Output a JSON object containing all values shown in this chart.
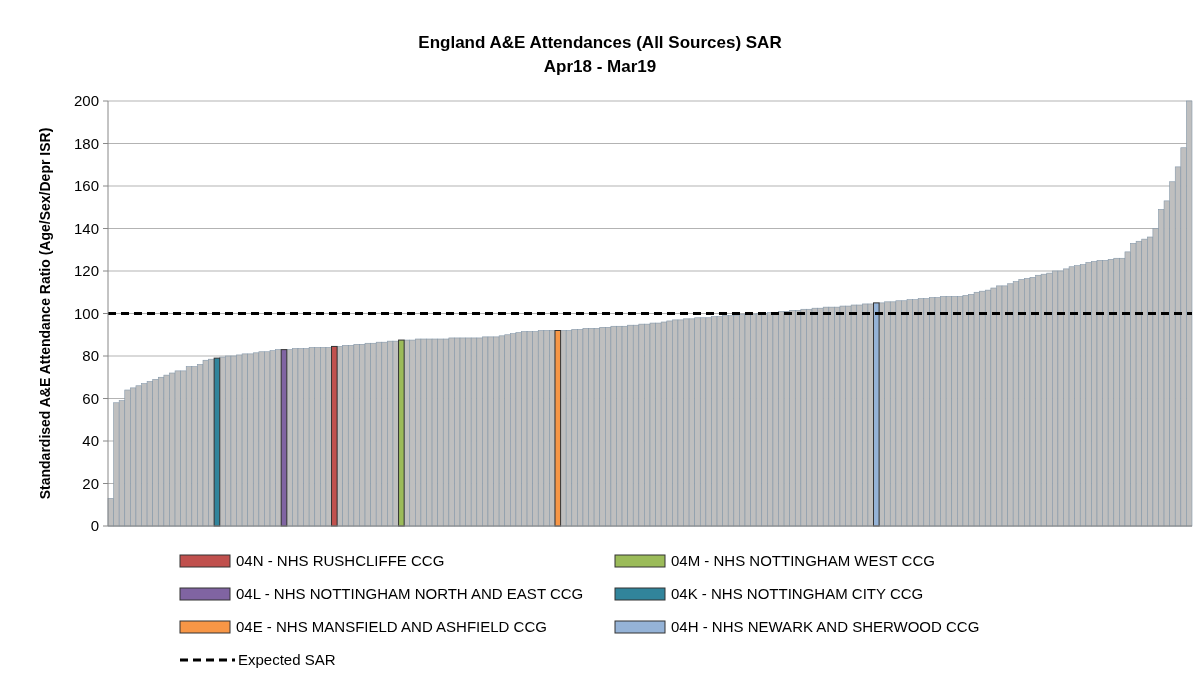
{
  "chart_data": {
    "type": "bar",
    "title": "England A&E Attendances (All Sources) SAR",
    "subtitle": "Apr18 - Mar19",
    "ylabel": "Standardised A&E Attendance Ratio (Age/Sex/Depr ISR)",
    "categories": [
      null,
      null,
      null,
      null,
      null,
      null,
      null,
      null,
      null,
      null,
      null,
      null,
      null,
      null,
      null,
      null,
      null,
      null,
      null,
      null,
      null,
      null,
      null,
      null,
      null,
      null,
      null,
      null,
      null,
      null,
      null,
      null,
      null,
      null,
      null,
      null,
      null,
      null,
      null,
      null,
      null,
      null,
      null,
      null,
      null,
      null,
      null,
      null,
      null,
      null,
      null,
      null,
      null,
      null,
      null,
      null,
      null,
      null,
      null,
      null,
      null,
      null,
      null,
      null,
      null,
      null,
      null,
      null,
      null,
      null,
      null,
      null,
      null,
      null,
      null,
      null,
      null,
      null,
      null,
      null,
      null,
      null,
      null,
      null,
      null,
      null,
      null,
      null,
      null,
      null,
      null,
      null,
      null,
      null,
      null,
      null,
      null,
      null,
      null,
      null,
      null,
      null,
      null,
      null,
      null,
      null,
      null,
      null,
      null,
      null,
      null,
      null,
      null,
      null,
      null,
      null,
      null,
      null,
      null,
      null,
      null,
      null,
      null,
      null,
      null,
      null,
      null,
      null,
      null,
      null,
      null,
      null,
      null,
      null,
      null,
      null,
      null,
      null,
      null,
      null,
      null,
      null,
      null,
      null,
      null,
      null,
      null,
      null,
      null,
      null,
      null,
      null,
      null,
      null,
      null,
      null,
      null,
      null,
      null,
      null,
      null,
      null,
      null,
      null,
      null,
      null,
      null,
      null,
      null,
      null,
      null,
      null,
      null,
      null,
      null,
      null,
      null,
      null,
      null,
      null,
      null,
      null,
      null,
      null,
      null,
      null,
      null,
      null,
      null,
      null,
      null,
      null,
      null,
      null
    ],
    "series": [
      {
        "color": "#bfbfbf",
        "values": [
          13,
          58,
          59,
          64,
          65,
          66,
          67,
          68,
          69,
          70,
          71,
          72,
          73,
          73,
          75,
          75,
          76,
          78,
          78.5,
          null,
          79.5,
          80,
          80,
          80.5,
          81,
          81,
          81.5,
          82,
          82,
          82.5,
          83,
          null,
          83,
          83.5,
          83.5,
          83.5,
          84,
          84,
          84,
          84,
          null,
          84.5,
          85,
          85,
          85.5,
          85.5,
          86,
          86,
          86.5,
          86.5,
          87,
          87,
          null,
          87.5,
          87.5,
          88,
          88,
          88,
          88,
          88,
          88,
          88.5,
          88.5,
          88.5,
          88.5,
          88.5,
          88.5,
          89,
          89,
          89,
          89.5,
          90,
          90.5,
          91,
          91.5,
          91.5,
          91.5,
          92,
          92,
          92,
          null,
          92,
          92,
          92.5,
          92.5,
          93,
          93,
          93,
          93.5,
          93.5,
          94,
          94,
          94,
          94.5,
          94.5,
          95,
          95,
          95.5,
          95.5,
          96,
          96.5,
          97,
          97,
          97.5,
          97.5,
          98,
          98,
          98,
          98.5,
          98.5,
          99,
          99,
          99,
          99.5,
          99.5,
          99.5,
          100,
          100,
          100.5,
          100.5,
          101,
          101,
          101.5,
          101.5,
          102,
          102,
          102.5,
          102.5,
          103,
          103,
          103,
          103.5,
          103.5,
          104,
          104,
          104.5,
          104.5,
          null,
          105,
          105.5,
          105.5,
          106,
          106,
          106.5,
          106.5,
          107,
          107,
          107.5,
          107.5,
          108,
          108,
          108,
          108,
          108.5,
          109,
          110,
          110.5,
          111,
          112,
          113,
          113,
          114,
          115,
          116,
          116.5,
          117,
          118,
          118.5,
          119,
          120,
          120,
          121,
          122,
          122.5,
          123,
          124,
          124.5,
          125,
          125,
          125.5,
          126,
          126,
          129,
          133,
          134,
          135,
          136,
          140,
          149,
          153,
          162,
          169,
          178,
          200
        ]
      },
      {
        "name": "04N - NHS RUSHCLIFFE CCG",
        "color": "#c0504d",
        "values": [
          null,
          null,
          null,
          null,
          null,
          null,
          null,
          null,
          null,
          null,
          null,
          null,
          null,
          null,
          null,
          null,
          null,
          null,
          null,
          null,
          null,
          null,
          null,
          null,
          null,
          null,
          null,
          null,
          null,
          null,
          null,
          null,
          null,
          null,
          null,
          null,
          null,
          null,
          null,
          null,
          84.5,
          null,
          null,
          null,
          null,
          null,
          null,
          null,
          null,
          null,
          null,
          null,
          null,
          null,
          null,
          null,
          null,
          null,
          null,
          null,
          null,
          null,
          null,
          null,
          null,
          null,
          null,
          null,
          null,
          null,
          null,
          null,
          null,
          null,
          null,
          null,
          null,
          null,
          null,
          null,
          null,
          null,
          null,
          null,
          null,
          null,
          null,
          null,
          null,
          null,
          null,
          null,
          null,
          null,
          null,
          null,
          null,
          null,
          null,
          null,
          null,
          null,
          null,
          null,
          null,
          null,
          null,
          null,
          null,
          null,
          null,
          null,
          null,
          null,
          null,
          null,
          null,
          null,
          null,
          null,
          null,
          null,
          null,
          null,
          null,
          null,
          null,
          null,
          null,
          null,
          null,
          null,
          null,
          null,
          null,
          null,
          null,
          null,
          null,
          null,
          null,
          null,
          null,
          null,
          null,
          null,
          null,
          null,
          null,
          null,
          null,
          null,
          null,
          null,
          null,
          null,
          null,
          null,
          null,
          null,
          null,
          null,
          null,
          null,
          null,
          null,
          null,
          null,
          null,
          null,
          null,
          null,
          null,
          null,
          null,
          null,
          null,
          null,
          null,
          null,
          null,
          null,
          null,
          null,
          null,
          null,
          null,
          null,
          null,
          null,
          null,
          null,
          null,
          null
        ]
      },
      {
        "name": "04M - NHS NOTTINGHAM WEST CCG",
        "color": "#9bbb59",
        "values": [
          null,
          null,
          null,
          null,
          null,
          null,
          null,
          null,
          null,
          null,
          null,
          null,
          null,
          null,
          null,
          null,
          null,
          null,
          null,
          null,
          null,
          null,
          null,
          null,
          null,
          null,
          null,
          null,
          null,
          null,
          null,
          null,
          null,
          null,
          null,
          null,
          null,
          null,
          null,
          null,
          null,
          null,
          null,
          null,
          null,
          null,
          null,
          null,
          null,
          null,
          null,
          null,
          87.5,
          null,
          null,
          null,
          null,
          null,
          null,
          null,
          null,
          null,
          null,
          null,
          null,
          null,
          null,
          null,
          null,
          null,
          null,
          null,
          null,
          null,
          null,
          null,
          null,
          null,
          null,
          null,
          null,
          null,
          null,
          null,
          null,
          null,
          null,
          null,
          null,
          null,
          null,
          null,
          null,
          null,
          null,
          null,
          null,
          null,
          null,
          null,
          null,
          null,
          null,
          null,
          null,
          null,
          null,
          null,
          null,
          null,
          null,
          null,
          null,
          null,
          null,
          null,
          null,
          null,
          null,
          null,
          null,
          null,
          null,
          null,
          null,
          null,
          null,
          null,
          null,
          null,
          null,
          null,
          null,
          null,
          null,
          null,
          null,
          null,
          null,
          null,
          null,
          null,
          null,
          null,
          null,
          null,
          null,
          null,
          null,
          null,
          null,
          null,
          null,
          null,
          null,
          null,
          null,
          null,
          null,
          null,
          null,
          null,
          null,
          null,
          null,
          null,
          null,
          null,
          null,
          null,
          null,
          null,
          null,
          null,
          null,
          null,
          null,
          null,
          null,
          null,
          null,
          null,
          null,
          null,
          null,
          null,
          null,
          null,
          null,
          null,
          null,
          null,
          null,
          null
        ]
      },
      {
        "name": "04L - NHS NOTTINGHAM NORTH AND EAST CCG",
        "color": "#8064a2",
        "values": [
          null,
          null,
          null,
          null,
          null,
          null,
          null,
          null,
          null,
          null,
          null,
          null,
          null,
          null,
          null,
          null,
          null,
          null,
          null,
          null,
          null,
          null,
          null,
          null,
          null,
          null,
          null,
          null,
          null,
          null,
          null,
          83,
          null,
          null,
          null,
          null,
          null,
          null,
          null,
          null,
          null,
          null,
          null,
          null,
          null,
          null,
          null,
          null,
          null,
          null,
          null,
          null,
          null,
          null,
          null,
          null,
          null,
          null,
          null,
          null,
          null,
          null,
          null,
          null,
          null,
          null,
          null,
          null,
          null,
          null,
          null,
          null,
          null,
          null,
          null,
          null,
          null,
          null,
          null,
          null,
          null,
          null,
          null,
          null,
          null,
          null,
          null,
          null,
          null,
          null,
          null,
          null,
          null,
          null,
          null,
          null,
          null,
          null,
          null,
          null,
          null,
          null,
          null,
          null,
          null,
          null,
          null,
          null,
          null,
          null,
          null,
          null,
          null,
          null,
          null,
          null,
          null,
          null,
          null,
          null,
          null,
          null,
          null,
          null,
          null,
          null,
          null,
          null,
          null,
          null,
          null,
          null,
          null,
          null,
          null,
          null,
          null,
          null,
          null,
          null,
          null,
          null,
          null,
          null,
          null,
          null,
          null,
          null,
          null,
          null,
          null,
          null,
          null,
          null,
          null,
          null,
          null,
          null,
          null,
          null,
          null,
          null,
          null,
          null,
          null,
          null,
          null,
          null,
          null,
          null,
          null,
          null,
          null,
          null,
          null,
          null,
          null,
          null,
          null,
          null,
          null,
          null,
          null,
          null,
          null,
          null,
          null,
          null,
          null,
          null,
          null,
          null,
          null,
          null
        ]
      },
      {
        "name": "04K - NHS NOTTINGHAM CITY CCG",
        "color": "#31849b",
        "values": [
          null,
          null,
          null,
          null,
          null,
          null,
          null,
          null,
          null,
          null,
          null,
          null,
          null,
          null,
          null,
          null,
          null,
          null,
          null,
          79,
          null,
          null,
          null,
          null,
          null,
          null,
          null,
          null,
          null,
          null,
          null,
          null,
          null,
          null,
          null,
          null,
          null,
          null,
          null,
          null,
          null,
          null,
          null,
          null,
          null,
          null,
          null,
          null,
          null,
          null,
          null,
          null,
          null,
          null,
          null,
          null,
          null,
          null,
          null,
          null,
          null,
          null,
          null,
          null,
          null,
          null,
          null,
          null,
          null,
          null,
          null,
          null,
          null,
          null,
          null,
          null,
          null,
          null,
          null,
          null,
          null,
          null,
          null,
          null,
          null,
          null,
          null,
          null,
          null,
          null,
          null,
          null,
          null,
          null,
          null,
          null,
          null,
          null,
          null,
          null,
          null,
          null,
          null,
          null,
          null,
          null,
          null,
          null,
          null,
          null,
          null,
          null,
          null,
          null,
          null,
          null,
          null,
          null,
          null,
          null,
          null,
          null,
          null,
          null,
          null,
          null,
          null,
          null,
          null,
          null,
          null,
          null,
          null,
          null,
          null,
          null,
          null,
          null,
          null,
          null,
          null,
          null,
          null,
          null,
          null,
          null,
          null,
          null,
          null,
          null,
          null,
          null,
          null,
          null,
          null,
          null,
          null,
          null,
          null,
          null,
          null,
          null,
          null,
          null,
          null,
          null,
          null,
          null,
          null,
          null,
          null,
          null,
          null,
          null,
          null,
          null,
          null,
          null,
          null,
          null,
          null,
          null,
          null,
          null,
          null,
          null,
          null,
          null,
          null,
          null,
          null,
          null,
          null,
          null
        ]
      },
      {
        "name": "04E - NHS MANSFIELD AND ASHFIELD CCG",
        "color": "#f79646",
        "values": [
          null,
          null,
          null,
          null,
          null,
          null,
          null,
          null,
          null,
          null,
          null,
          null,
          null,
          null,
          null,
          null,
          null,
          null,
          null,
          null,
          null,
          null,
          null,
          null,
          null,
          null,
          null,
          null,
          null,
          null,
          null,
          null,
          null,
          null,
          null,
          null,
          null,
          null,
          null,
          null,
          null,
          null,
          null,
          null,
          null,
          null,
          null,
          null,
          null,
          null,
          null,
          null,
          null,
          null,
          null,
          null,
          null,
          null,
          null,
          null,
          null,
          null,
          null,
          null,
          null,
          null,
          null,
          null,
          null,
          null,
          null,
          null,
          null,
          null,
          null,
          null,
          null,
          null,
          null,
          null,
          92,
          null,
          null,
          null,
          null,
          null,
          null,
          null,
          null,
          null,
          null,
          null,
          null,
          null,
          null,
          null,
          null,
          null,
          null,
          null,
          null,
          null,
          null,
          null,
          null,
          null,
          null,
          null,
          null,
          null,
          null,
          null,
          null,
          null,
          null,
          null,
          null,
          null,
          null,
          null,
          null,
          null,
          null,
          null,
          null,
          null,
          null,
          null,
          null,
          null,
          null,
          null,
          null,
          null,
          null,
          null,
          null,
          null,
          null,
          null,
          null,
          null,
          null,
          null,
          null,
          null,
          null,
          null,
          null,
          null,
          null,
          null,
          null,
          null,
          null,
          null,
          null,
          null,
          null,
          null,
          null,
          null,
          null,
          null,
          null,
          null,
          null,
          null,
          null,
          null,
          null,
          null,
          null,
          null,
          null,
          null,
          null,
          null,
          null,
          null,
          null,
          null,
          null,
          null,
          null,
          null,
          null,
          null,
          null,
          null,
          null,
          null,
          null,
          null
        ]
      },
      {
        "name": "04H - NHS NEWARK AND SHERWOOD CCG",
        "color": "#95b3d7",
        "values": [
          null,
          null,
          null,
          null,
          null,
          null,
          null,
          null,
          null,
          null,
          null,
          null,
          null,
          null,
          null,
          null,
          null,
          null,
          null,
          null,
          null,
          null,
          null,
          null,
          null,
          null,
          null,
          null,
          null,
          null,
          null,
          null,
          null,
          null,
          null,
          null,
          null,
          null,
          null,
          null,
          null,
          null,
          null,
          null,
          null,
          null,
          null,
          null,
          null,
          null,
          null,
          null,
          null,
          null,
          null,
          null,
          null,
          null,
          null,
          null,
          null,
          null,
          null,
          null,
          null,
          null,
          null,
          null,
          null,
          null,
          null,
          null,
          null,
          null,
          null,
          null,
          null,
          null,
          null,
          null,
          null,
          null,
          null,
          null,
          null,
          null,
          null,
          null,
          null,
          null,
          null,
          null,
          null,
          null,
          null,
          null,
          null,
          null,
          null,
          null,
          null,
          null,
          null,
          null,
          null,
          null,
          null,
          null,
          null,
          null,
          null,
          null,
          null,
          null,
          null,
          null,
          null,
          null,
          null,
          null,
          null,
          null,
          null,
          null,
          null,
          null,
          null,
          null,
          null,
          null,
          null,
          null,
          null,
          null,
          null,
          null,
          null,
          105,
          null,
          null,
          null,
          null,
          null,
          null,
          null,
          null,
          null,
          null,
          null,
          null,
          null,
          null,
          null,
          null,
          null,
          null,
          null,
          null,
          null,
          null,
          null,
          null,
          null,
          null,
          null,
          null,
          null,
          null,
          null,
          null,
          null,
          null,
          null,
          null,
          null,
          null,
          null,
          null,
          null,
          null,
          null,
          null,
          null,
          null,
          null,
          null,
          null,
          null,
          null,
          null,
          null,
          null,
          null,
          null
        ]
      }
    ],
    "ylim": [
      0,
      200
    ],
    "yticks": [
      0,
      20,
      40,
      60,
      80,
      100,
      120,
      140,
      160,
      180,
      200
    ],
    "grid": "y",
    "legend": "bottom",
    "ref_lines": [
      {
        "axis": "y",
        "value": 100,
        "label": "Expected SAR",
        "color": "#000000",
        "line_style": "dashed"
      }
    ]
  }
}
